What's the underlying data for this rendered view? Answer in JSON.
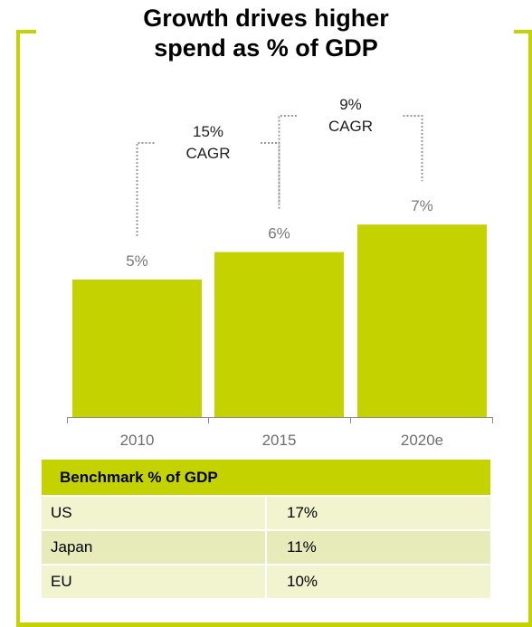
{
  "title_line1": "Growth drives higher",
  "title_line2": "spend as % of GDP",
  "accent_color": "#c4d300",
  "chart_data": {
    "type": "bar",
    "title": "Growth drives higher spend as % of GDP",
    "categories": [
      "2010",
      "2015",
      "2020e"
    ],
    "values": [
      5,
      6,
      7
    ],
    "value_labels": [
      "5%",
      "6%",
      "7%"
    ],
    "ylim": [
      0,
      10
    ],
    "grid": false,
    "annotations": [
      {
        "from": "2010",
        "to": "2015",
        "line1": "15%",
        "line2": "CAGR"
      },
      {
        "from": "2015",
        "to": "2020e",
        "line1": "9%",
        "line2": "CAGR"
      }
    ]
  },
  "benchmark": {
    "header": "Benchmark % of GDP",
    "rows": [
      {
        "label": "US",
        "value": "17%"
      },
      {
        "label": "Japan",
        "value": "11%"
      },
      {
        "label": "EU",
        "value": "10%"
      }
    ]
  }
}
